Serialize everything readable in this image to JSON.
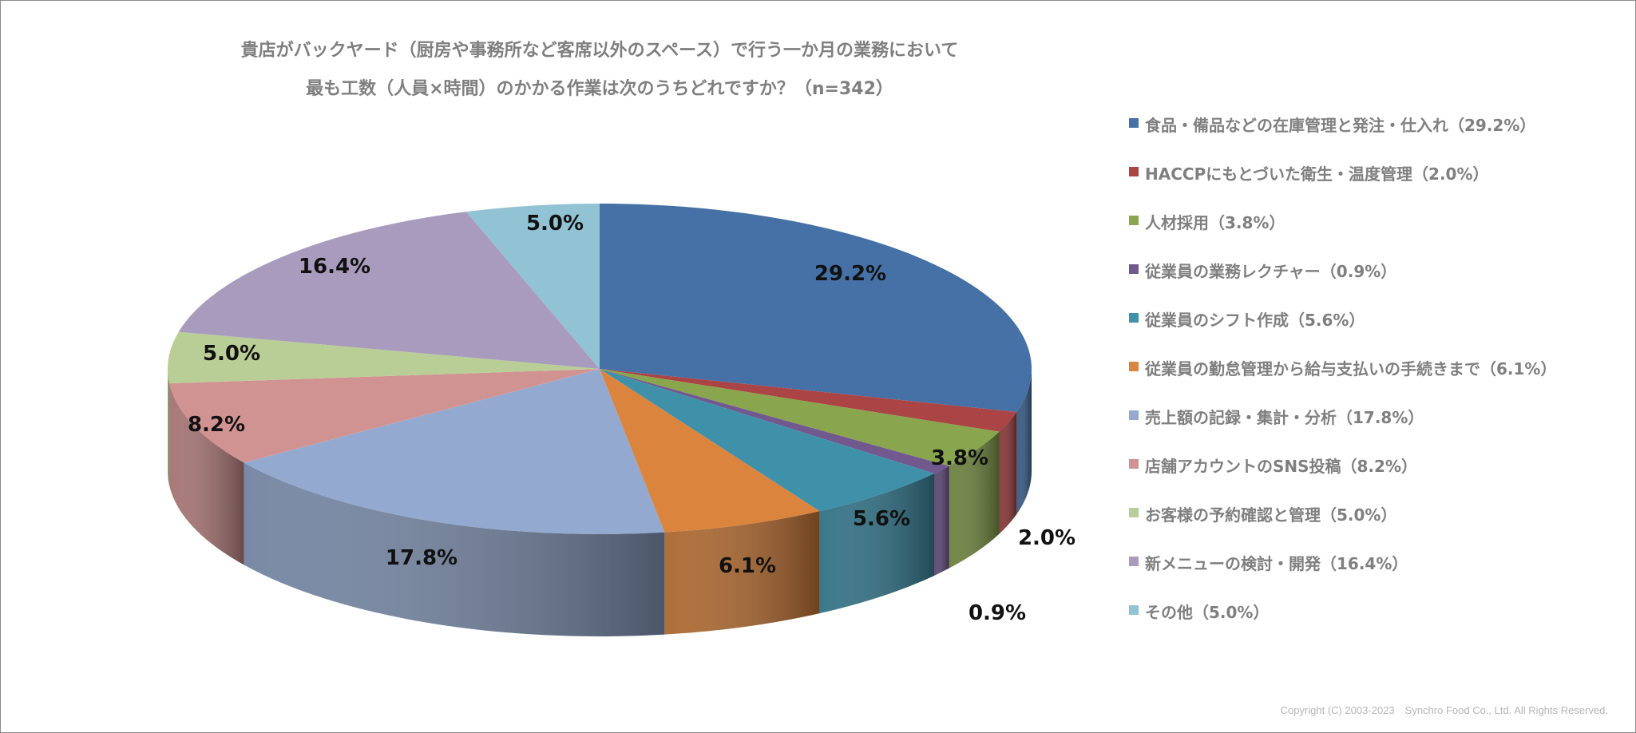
{
  "chart_data": {
    "type": "pie",
    "title": "貴店がバックヤード（厨房や事務所など客席以外のスペース）で行う一か月の業務において",
    "subtitle": "最も工数（人員×時間）のかかる作業は次のうちどれですか？（n=342）",
    "legend_position": "right",
    "unit": "%",
    "slices": [
      {
        "label": "食品・備品などの在庫管理と発注・仕入れ（29.2%）",
        "value": 29.2,
        "value_label": "29.2%",
        "color": "#4571a6"
      },
      {
        "label": "HACCPにもとづいた衛生・温度管理（2.0%）",
        "value": 2.0,
        "value_label": "2.0%",
        "color": "#ab4445"
      },
      {
        "label": "人材採用（3.8%）",
        "value": 3.8,
        "value_label": "3.8%",
        "color": "#89a54e"
      },
      {
        "label": "従業員の業務レクチャー（0.9%）",
        "value": 0.9,
        "value_label": "0.9%",
        "color": "#71588f"
      },
      {
        "label": "従業員のシフト作成（5.6%）",
        "value": 5.6,
        "value_label": "5.6%",
        "color": "#3f91aa"
      },
      {
        "label": "従業員の勤怠管理から給与支払いの手続きまで（6.1%）",
        "value": 6.1,
        "value_label": "6.1%",
        "color": "#db843d"
      },
      {
        "label": "売上額の記録・集計・分析（17.8%）",
        "value": 17.8,
        "value_label": "17.8%",
        "color": "#93a9cf"
      },
      {
        "label": "店舗アカウントのSNS投稿（8.2%）",
        "value": 8.2,
        "value_label": "8.2%",
        "color": "#d19392"
      },
      {
        "label": "お客様の予約確認と管理（5.0%）",
        "value": 5.0,
        "value_label": "5.0%",
        "color": "#b9cd96"
      },
      {
        "label": "新メニューの検討・開発（16.4%）",
        "value": 16.4,
        "value_label": "16.4%",
        "color": "#a99bbd"
      },
      {
        "label": "その他（5.0%）",
        "value": 5.0,
        "value_label": "5.0%",
        "color": "#92c3d4"
      }
    ]
  },
  "footer": {
    "copyright": "Copyright (C) 2003-2023　Synchro Food Co., Ltd. All Rights Reserved."
  }
}
